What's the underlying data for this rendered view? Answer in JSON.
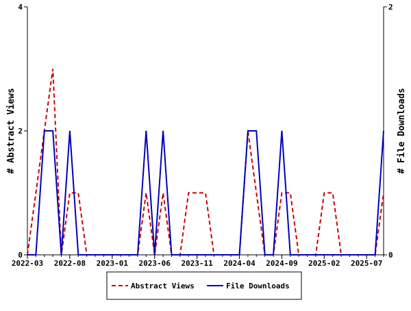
{
  "chart_data": {
    "type": "line",
    "title": "",
    "xlabel": "",
    "ylabel_left": "# Abstract Views",
    "ylabel_right": "# File Downloads",
    "ylim_left": [
      0,
      4
    ],
    "ylim_right": [
      0,
      2
    ],
    "yticks_left": [
      "0",
      "2",
      "4"
    ],
    "yticks_right": [
      "0",
      "2"
    ],
    "x": [
      "2022-03",
      "2022-04",
      "2022-05",
      "2022-06",
      "2022-07",
      "2022-08",
      "2022-09",
      "2022-10",
      "2022-11",
      "2022-12",
      "2023-01",
      "2023-02",
      "2023-03",
      "2023-04",
      "2023-05",
      "2023-06",
      "2023-07",
      "2023-08",
      "2023-09",
      "2023-10",
      "2023-11",
      "2023-12",
      "2024-01",
      "2024-02",
      "2024-03",
      "2024-04",
      "2024-05",
      "2024-06",
      "2024-07",
      "2024-08",
      "2024-09",
      "2024-10",
      "2024-11",
      "2024-12",
      "2025-01",
      "2025-02",
      "2025-03",
      "2025-04",
      "2025-05",
      "2025-06",
      "2025-07",
      "2025-08",
      "2025-09"
    ],
    "xtick_labels": [
      "2022-03",
      "2022-08",
      "2023-01",
      "2023-06",
      "2023-11",
      "2024-04",
      "2024-09",
      "2025-02",
      "2025-07"
    ],
    "series": [
      {
        "name": "Abstract Views",
        "axis": "left",
        "color": "#cc0000",
        "style": "dashed",
        "values": [
          0,
          1,
          2,
          3,
          0,
          1,
          1,
          0,
          0,
          0,
          0,
          0,
          0,
          0,
          1,
          0,
          1,
          0,
          0,
          1,
          1,
          1,
          0,
          0,
          0,
          0,
          2,
          1,
          0,
          0,
          1,
          1,
          0,
          0,
          0,
          1,
          1,
          0,
          0,
          0,
          0,
          0,
          1
        ]
      },
      {
        "name": "File Downloads",
        "axis": "right",
        "color": "#0000bb",
        "style": "solid",
        "values": [
          0,
          0,
          1,
          1,
          0,
          1,
          0,
          0,
          0,
          0,
          0,
          0,
          0,
          0,
          1,
          0,
          1,
          0,
          0,
          0,
          0,
          0,
          0,
          0,
          0,
          0,
          1,
          1,
          0,
          0,
          1,
          0,
          0,
          0,
          0,
          0,
          0,
          0,
          0,
          0,
          0,
          0,
          1
        ]
      }
    ],
    "legend": "bottom-center",
    "grid": false
  }
}
